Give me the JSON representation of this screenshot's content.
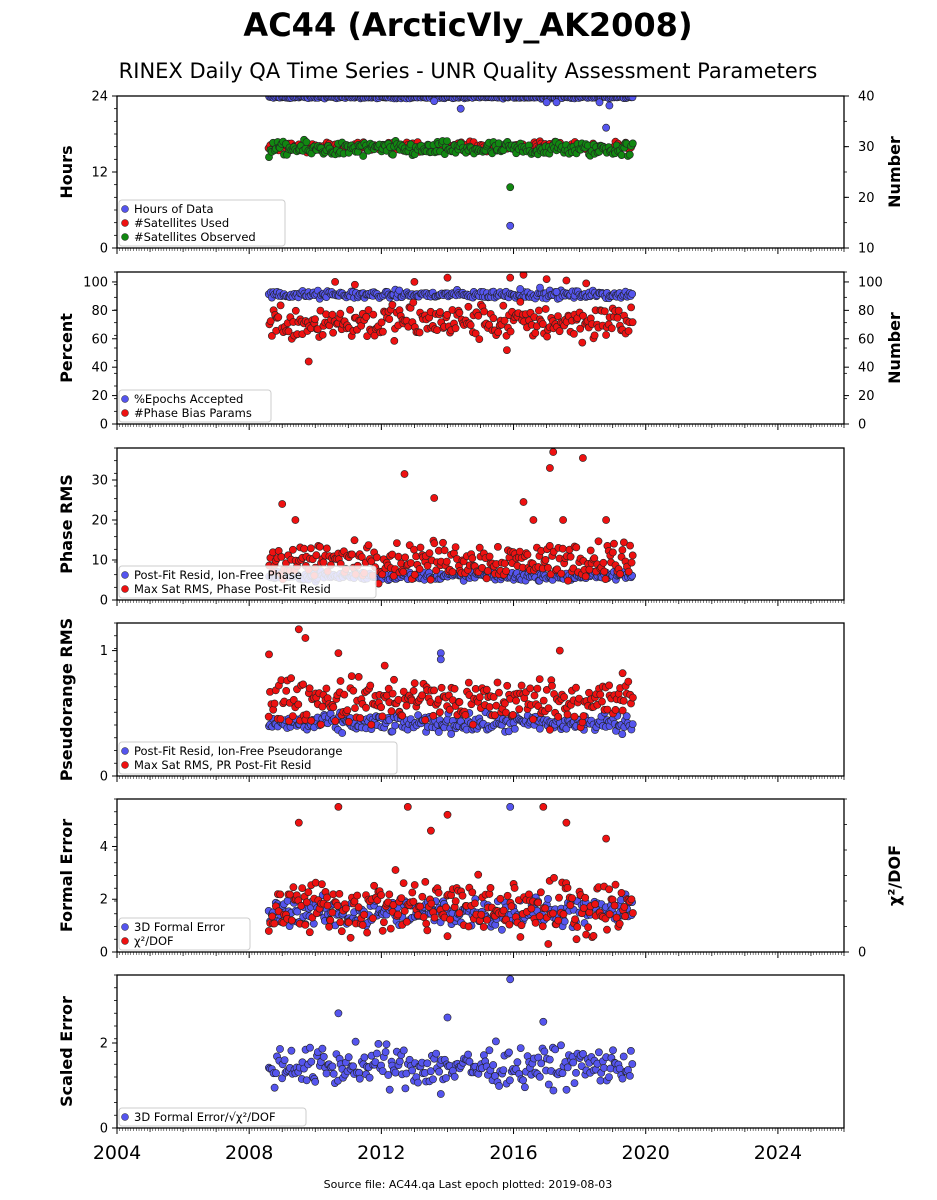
{
  "title": "AC44 (ArcticVly_AK2008)",
  "subtitle": "RINEX Daily QA Time Series - UNR Quality Assessment Parameters",
  "footer": "Source file: AC44.qa Last epoch plotted: 2019-08-03",
  "colors": {
    "blue": "#5555ee",
    "red": "#ee1111",
    "green": "#118811",
    "edge": "#222222"
  },
  "x_axis": {
    "range": [
      2004,
      2026
    ],
    "ticks": [
      "2004",
      "2008",
      "2012",
      "2016",
      "2020",
      "2024"
    ]
  },
  "chart_data": [
    {
      "type": "scatter",
      "ylabel": "Hours",
      "ylim": [
        0,
        24
      ],
      "yticks": [
        "0",
        "12",
        "24"
      ],
      "y2label": "Number",
      "y2lim": [
        10,
        40
      ],
      "y2ticks": [
        "10",
        "20",
        "30",
        "40"
      ],
      "legend": "bottom-left",
      "series": [
        {
          "name": "Hours of Data",
          "color": "blue",
          "axis": "left",
          "x_range": [
            2008.6,
            2019.6
          ],
          "base": 23.8,
          "spread": 0.1,
          "outliers": [
            [
              2013.6,
              23.2
            ],
            [
              2014.4,
              22.0
            ],
            [
              2017.0,
              23.0
            ],
            [
              2017.3,
              23.0
            ],
            [
              2018.6,
              23.0
            ],
            [
              2018.8,
              19.0
            ],
            [
              2018.9,
              22.5
            ],
            [
              2015.9,
              3.5
            ]
          ]
        },
        {
          "name": "#Satellites Used",
          "color": "red",
          "axis": "right",
          "x_range": [
            2008.6,
            2019.6
          ],
          "base": 30.0,
          "spread": 0.5,
          "outliers": []
        },
        {
          "name": "#Satellites Observed",
          "color": "green",
          "axis": "right",
          "x_range": [
            2008.6,
            2019.6
          ],
          "base": 29.5,
          "spread": 0.8,
          "outliers": [
            [
              2015.9,
              22.0
            ]
          ]
        }
      ]
    },
    {
      "type": "scatter",
      "ylabel": "Percent",
      "ylim": [
        0,
        107
      ],
      "yticks": [
        "0",
        "20",
        "40",
        "60",
        "80",
        "100"
      ],
      "y2label": "Number",
      "y2lim": [
        0,
        107
      ],
      "y2ticks": [
        "0",
        "20",
        "40",
        "60",
        "80",
        "100"
      ],
      "legend": "bottom-left",
      "series": [
        {
          "name": "%Epochs Accepted",
          "color": "blue",
          "axis": "left",
          "x_range": [
            2008.6,
            2019.6
          ],
          "base": 91,
          "spread": 1.5,
          "outliers": [
            [
              2016.2,
              95
            ],
            [
              2016.8,
              96
            ],
            [
              2017.3,
              93
            ]
          ]
        },
        {
          "name": "#Phase Bias Params",
          "color": "red",
          "axis": "right",
          "x_range": [
            2008.6,
            2019.6
          ],
          "base": 72,
          "spread": 7,
          "outliers": [
            [
              2009.8,
              44
            ],
            [
              2010.6,
              100
            ],
            [
              2011.2,
              98
            ],
            [
              2013.0,
              100
            ],
            [
              2014.0,
              103
            ],
            [
              2015.8,
              52
            ],
            [
              2015.9,
              103
            ],
            [
              2016.3,
              105
            ],
            [
              2017.0,
              102
            ],
            [
              2017.6,
              101
            ],
            [
              2018.2,
              99
            ]
          ]
        }
      ]
    },
    {
      "type": "scatter",
      "ylabel": "Phase RMS",
      "ylim": [
        0,
        38
      ],
      "yticks": [
        "0",
        "10",
        "20",
        "30"
      ],
      "legend": "bottom-left",
      "series": [
        {
          "name": "Post-Fit Resid, Ion-Free Phase",
          "color": "blue",
          "axis": "left",
          "x_range": [
            2008.6,
            2019.6
          ],
          "base": 6.0,
          "spread": 0.6,
          "outliers": []
        },
        {
          "name": "Max Sat RMS, Phase Post-Fit Resid",
          "color": "red",
          "axis": "left",
          "x_range": [
            2008.6,
            2019.6
          ],
          "base": 10.0,
          "spread": 2.5,
          "outliers": [
            [
              2009.0,
              24
            ],
            [
              2009.4,
              20
            ],
            [
              2012.7,
              31.5
            ],
            [
              2013.6,
              25.5
            ],
            [
              2016.3,
              24.5
            ],
            [
              2016.6,
              20
            ],
            [
              2017.1,
              33
            ],
            [
              2017.2,
              37
            ],
            [
              2017.5,
              20
            ],
            [
              2018.1,
              35.5
            ],
            [
              2018.8,
              20
            ]
          ]
        }
      ]
    },
    {
      "type": "scatter",
      "ylabel": "Pseudorange RMS",
      "ylim": [
        0,
        1.22
      ],
      "yticks": [
        "0",
        "1"
      ],
      "legend": "bottom-left",
      "series": [
        {
          "name": "Post-Fit Resid, Ion-Free Pseudorange",
          "color": "blue",
          "axis": "left",
          "x_range": [
            2008.6,
            2019.6
          ],
          "base": 0.42,
          "spread": 0.04,
          "outliers": [
            [
              2013.8,
              0.98
            ],
            [
              2013.8,
              0.93
            ]
          ]
        },
        {
          "name": "Max Sat RMS, PR Post-Fit Resid",
          "color": "red",
          "axis": "left",
          "x_range": [
            2008.6,
            2019.6
          ],
          "base": 0.6,
          "spread": 0.1,
          "outliers": [
            [
              2008.6,
              0.97
            ],
            [
              2009.5,
              1.17
            ],
            [
              2009.7,
              1.1
            ],
            [
              2010.7,
              0.98
            ],
            [
              2012.1,
              0.88
            ],
            [
              2017.4,
              1.0
            ],
            [
              2019.3,
              0.82
            ]
          ]
        }
      ]
    },
    {
      "type": "scatter",
      "ylabel": "Formal Error",
      "ylim": [
        0,
        5.8
      ],
      "yticks": [
        "0",
        "2",
        "4"
      ],
      "y2label": "χ²/DOF",
      "y2ticks": [
        "0"
      ],
      "legend": "bottom-left",
      "series": [
        {
          "name": "3D Formal Error",
          "color": "blue",
          "axis": "left",
          "x_range": [
            2008.6,
            2019.6
          ],
          "base": 1.5,
          "spread": 0.3,
          "outliers": [
            [
              2015.9,
              5.5
            ]
          ]
        },
        {
          "name": "χ²/DOF",
          "color": "red",
          "axis": "left",
          "x_range": [
            2008.6,
            2019.6
          ],
          "base": 1.7,
          "spread": 0.6,
          "outliers": [
            [
              2010.7,
              5.5
            ],
            [
              2012.8,
              5.5
            ],
            [
              2014.0,
              5.2
            ],
            [
              2013.5,
              4.6
            ],
            [
              2016.9,
              5.5
            ],
            [
              2017.6,
              4.9
            ],
            [
              2009.5,
              4.9
            ],
            [
              2018.8,
              4.3
            ],
            [
              2014.0,
              0.6
            ]
          ]
        }
      ]
    },
    {
      "type": "scatter",
      "ylabel": "Scaled Error",
      "ylim": [
        0,
        3.6
      ],
      "yticks": [
        "0",
        "2"
      ],
      "legend": "bottom-left",
      "series": [
        {
          "name": "3D Formal Error/√χ²/DOF",
          "color": "blue",
          "axis": "left",
          "x_range": [
            2008.6,
            2019.6
          ],
          "base": 1.45,
          "spread": 0.25,
          "outliers": [
            [
              2015.9,
              3.5
            ],
            [
              2010.7,
              2.7
            ],
            [
              2014.0,
              2.6
            ],
            [
              2016.9,
              2.5
            ],
            [
              2013.8,
              0.8
            ]
          ]
        }
      ]
    }
  ]
}
